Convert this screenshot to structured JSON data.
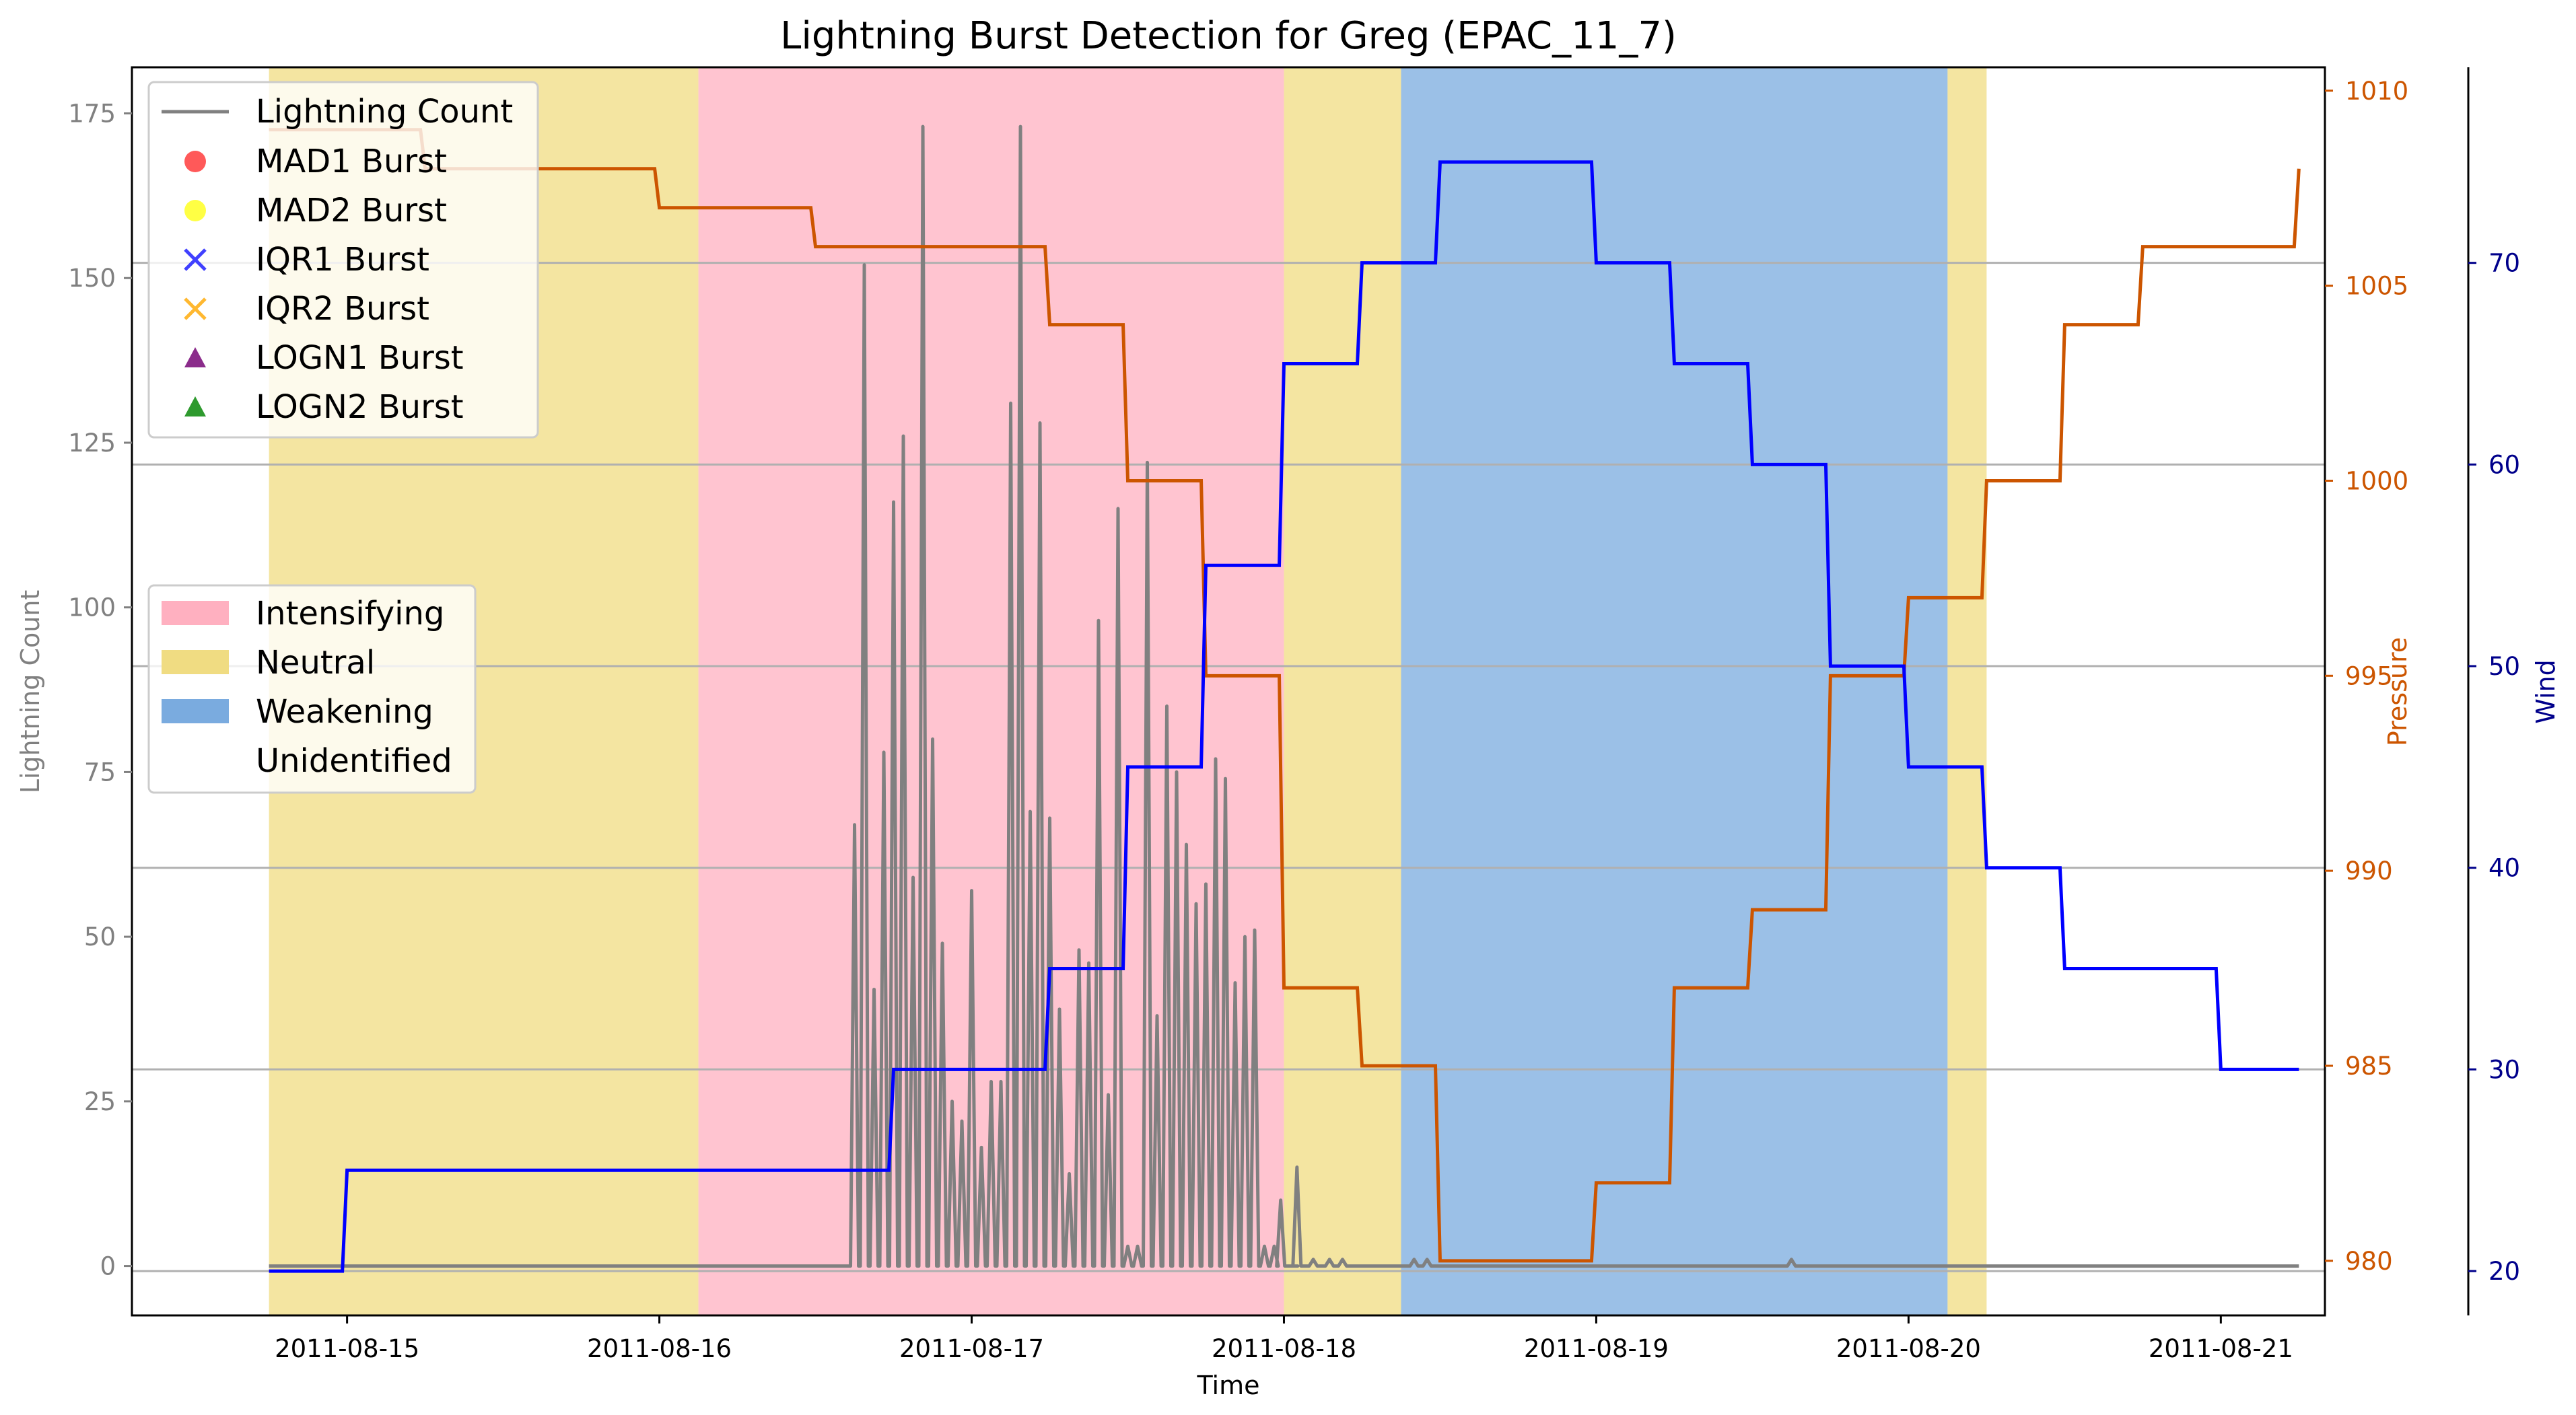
{
  "chart_data": {
    "type": "line",
    "title": "Lightning Burst Detection for Greg (EPAC_11_7)",
    "xlabel": "Time",
    "axes": {
      "left": {
        "label": "Lightning Count",
        "color": "#808080",
        "ylim": [
          -7.5,
          182
        ],
        "ticks": [
          0,
          25,
          50,
          75,
          100,
          125,
          150,
          175
        ]
      },
      "right1": {
        "label": "Pressure",
        "color": "#cc5500",
        "ylim": [
          978.6,
          1010.6
        ],
        "ticks": [
          980,
          985,
          990,
          995,
          1000,
          1005,
          1010
        ]
      },
      "right2": {
        "label": "Wind",
        "color": "#00008b",
        "ylim": [
          17.8,
          79.7
        ],
        "ticks": [
          20,
          30,
          40,
          50,
          60,
          70
        ]
      }
    },
    "x_ticks": [
      "2011-08-15",
      "2011-08-16",
      "2011-08-17",
      "2011-08-18",
      "2011-08-19",
      "2011-08-20",
      "2011-08-21"
    ],
    "xlim": [
      "2011-08-14 07:28",
      "2011-08-21 08:00"
    ],
    "grid": "horizontal lines at wind ticks",
    "shaded_regions": [
      {
        "start": "2011-08-14 18:00",
        "end": "2011-08-16 03:00",
        "label": "Neutral",
        "color": "#f0dc82"
      },
      {
        "start": "2011-08-16 03:00",
        "end": "2011-08-18 00:00",
        "label": "Intensifying",
        "color": "#ffb0c0"
      },
      {
        "start": "2011-08-18 00:00",
        "end": "2011-08-18 09:00",
        "label": "Neutral",
        "color": "#f0dc82"
      },
      {
        "start": "2011-08-18 09:00",
        "end": "2011-08-20 03:00",
        "label": "Weakening",
        "color": "#7aabdf"
      },
      {
        "start": "2011-08-20 03:00",
        "end": "2011-08-20 06:00",
        "label": "Neutral",
        "color": "#f0dc82"
      }
    ],
    "series": [
      {
        "name": "Lightning Count",
        "axis": "left",
        "color": "#808080",
        "x": [
          "2011-08-16 15:00",
          "2011-08-16 15:45",
          "2011-08-16 16:30",
          "2011-08-16 17:15",
          "2011-08-16 18:00",
          "2011-08-16 18:45",
          "2011-08-16 19:30",
          "2011-08-16 20:15",
          "2011-08-16 21:00",
          "2011-08-16 21:45",
          "2011-08-16 22:30",
          "2011-08-16 23:15",
          "2011-08-17 00:00",
          "2011-08-17 00:45",
          "2011-08-17 01:30",
          "2011-08-17 02:15",
          "2011-08-17 03:00",
          "2011-08-17 03:45",
          "2011-08-17 04:30",
          "2011-08-17 05:15",
          "2011-08-17 06:00",
          "2011-08-17 06:45",
          "2011-08-17 07:30",
          "2011-08-17 08:15",
          "2011-08-17 09:00",
          "2011-08-17 09:45",
          "2011-08-17 10:30",
          "2011-08-17 11:15",
          "2011-08-17 12:00",
          "2011-08-17 12:45",
          "2011-08-17 13:30",
          "2011-08-17 14:15",
          "2011-08-17 15:00",
          "2011-08-17 15:45",
          "2011-08-17 16:30",
          "2011-08-17 17:15",
          "2011-08-17 18:00",
          "2011-08-17 18:45",
          "2011-08-17 19:30",
          "2011-08-17 20:15",
          "2011-08-17 21:00",
          "2011-08-17 21:45",
          "2011-08-17 22:30",
          "2011-08-17 23:15",
          "2011-08-17 23:45",
          "2011-08-18 00:45",
          "2011-08-18 01:00",
          "2011-08-18 02:15",
          "2011-08-18 03:30",
          "2011-08-18 04:30",
          "2011-08-18 10:00",
          "2011-08-18 11:00",
          "2011-08-19 15:00"
        ],
        "y": [
          67,
          152,
          42,
          78,
          116,
          126,
          59,
          173,
          80,
          49,
          25,
          22,
          57,
          18,
          28,
          28,
          131,
          173,
          69,
          128,
          68,
          39,
          14,
          48,
          46,
          98,
          26,
          115,
          3,
          3,
          122,
          38,
          85,
          75,
          64,
          55,
          58,
          77,
          74,
          43,
          50,
          51,
          3,
          3,
          10,
          0,
          15,
          1,
          1,
          1,
          1,
          1,
          1
        ]
      },
      {
        "name": "Pressure",
        "axis": "right1",
        "color": "#cc5500",
        "x": [
          "2011-08-14 18:00",
          "2011-08-15 00:00",
          "2011-08-15 06:00",
          "2011-08-15 12:00",
          "2011-08-15 18:00",
          "2011-08-16 00:00",
          "2011-08-16 06:00",
          "2011-08-16 12:00",
          "2011-08-16 18:00",
          "2011-08-17 00:00",
          "2011-08-17 06:00",
          "2011-08-17 12:00",
          "2011-08-17 18:00",
          "2011-08-18 00:00",
          "2011-08-18 06:00",
          "2011-08-18 12:00",
          "2011-08-18 18:00",
          "2011-08-19 00:00",
          "2011-08-19 06:00",
          "2011-08-19 12:00",
          "2011-08-19 18:00",
          "2011-08-20 00:00",
          "2011-08-20 06:00",
          "2011-08-20 12:00",
          "2011-08-20 18:00",
          "2011-08-21 00:00",
          "2011-08-21 06:00"
        ],
        "y": [
          1009,
          1009,
          1008,
          1008,
          1008,
          1007,
          1007,
          1006,
          1006,
          1006,
          1004,
          1000,
          995,
          987,
          985,
          980,
          980,
          982,
          987,
          989,
          995,
          997,
          1000,
          1004,
          1006,
          1006,
          1008
        ]
      },
      {
        "name": "Wind",
        "axis": "right2",
        "color": "#0000ff",
        "x": [
          "2011-08-14 18:00",
          "2011-08-15 00:00",
          "2011-08-15 06:00",
          "2011-08-15 12:00",
          "2011-08-15 18:00",
          "2011-08-16 00:00",
          "2011-08-16 06:00",
          "2011-08-16 12:00",
          "2011-08-16 18:00",
          "2011-08-17 00:00",
          "2011-08-17 06:00",
          "2011-08-17 12:00",
          "2011-08-17 18:00",
          "2011-08-18 00:00",
          "2011-08-18 06:00",
          "2011-08-18 12:00",
          "2011-08-18 18:00",
          "2011-08-19 00:00",
          "2011-08-19 06:00",
          "2011-08-19 12:00",
          "2011-08-19 18:00",
          "2011-08-20 00:00",
          "2011-08-20 06:00",
          "2011-08-20 12:00",
          "2011-08-20 18:00",
          "2011-08-21 00:00",
          "2011-08-21 06:00"
        ],
        "y": [
          20,
          25,
          25,
          25,
          25,
          25,
          25,
          25,
          30,
          30,
          35,
          45,
          55,
          65,
          70,
          75,
          75,
          70,
          65,
          60,
          50,
          45,
          40,
          35,
          35,
          30,
          30
        ]
      }
    ],
    "legend1": {
      "placement": "top-left",
      "items": [
        {
          "label": "Lightning Count",
          "marker": "line",
          "color": "#808080"
        },
        {
          "label": "MAD1 Burst",
          "marker": "circle",
          "color": "#ff3030"
        },
        {
          "label": "MAD2 Burst",
          "marker": "circle",
          "color": "#ffff30"
        },
        {
          "label": "IQR1 Burst",
          "marker": "x",
          "color": "#4040ff"
        },
        {
          "label": "IQR2 Burst",
          "marker": "x",
          "color": "#ffb830"
        },
        {
          "label": "LOGN1 Burst",
          "marker": "triangle",
          "color": "#8b2c8b"
        },
        {
          "label": "LOGN2 Burst",
          "marker": "triangle",
          "color": "#2e9a2e"
        }
      ]
    },
    "legend2": {
      "placement": "center-left",
      "items": [
        {
          "label": "Intensifying",
          "color": "#ffb0c0"
        },
        {
          "label": "Neutral",
          "color": "#f0dc82"
        },
        {
          "label": "Weakening",
          "color": "#7aabdf"
        },
        {
          "label": "Unidentified",
          "color": "#ffffff"
        }
      ]
    }
  }
}
